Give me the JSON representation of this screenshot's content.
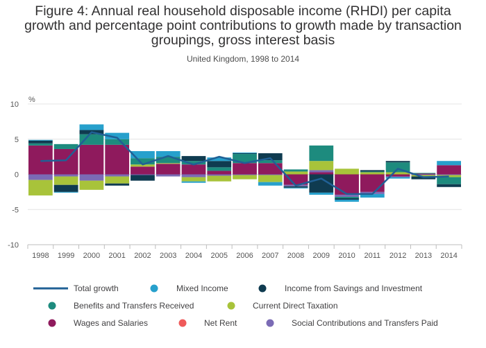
{
  "title_line1": "Figure 4: Annual real household disposable income (RHDI) per capita",
  "title_line2": "growth and percentage point contributions to growth made by transaction",
  "title_line3": "groupings, gross interest basis",
  "subtitle": "United Kingdom, 1998 to 2014",
  "chart_data": {
    "type": "bar",
    "stacked": true,
    "unit_label": "%",
    "ylim": [
      -10,
      10
    ],
    "yticks": [
      -10,
      -5,
      0,
      5,
      10
    ],
    "grid": true,
    "legend_position": "bottom",
    "categories": [
      "1998",
      "1999",
      "2000",
      "2001",
      "2002",
      "2003",
      "2004",
      "2005",
      "2006",
      "2007",
      "2008",
      "2009",
      "2010",
      "2011",
      "2012",
      "2013",
      "2014"
    ],
    "series": [
      {
        "name": "Wages and Salaries",
        "color": "#8f1a5d",
        "values": [
          4.1,
          3.6,
          4.2,
          4.2,
          1.1,
          1.5,
          1.4,
          0.5,
          1.6,
          1.6,
          -1.5,
          0.3,
          -2.9,
          -2.5,
          -0.3,
          0.1,
          1.3
        ]
      },
      {
        "name": "Social Contributions and Transfers Paid",
        "color": "#7b6bb5",
        "values": [
          -0.8,
          -0.3,
          -0.9,
          -0.3,
          -0.1,
          -0.3,
          -0.4,
          -0.2,
          -0.1,
          -0.1,
          -0.2,
          0.3,
          -0.3,
          -0.3,
          -0.1,
          -0.1,
          -0.1
        ]
      },
      {
        "name": "Net Rent",
        "color": "#ef5a5a",
        "values": [
          0.0,
          0.0,
          0.0,
          0.0,
          0.0,
          0.0,
          0.0,
          0.0,
          0.0,
          0.0,
          0.0,
          0.0,
          0.0,
          0.0,
          0.0,
          0.0,
          0.0
        ]
      },
      {
        "name": "Current Direct Taxation",
        "color": "#a8c33a",
        "values": [
          -2.2,
          -1.2,
          -1.3,
          -1.0,
          0.3,
          0.1,
          -0.6,
          -0.8,
          -0.6,
          -1.0,
          0.4,
          1.3,
          0.8,
          0.3,
          0.3,
          -0.2,
          -0.3
        ]
      },
      {
        "name": "Benefits and Transfers Received",
        "color": "#1d8b7e",
        "values": [
          0.3,
          0.7,
          1.5,
          0.8,
          0.9,
          0.9,
          0.5,
          0.5,
          1.3,
          0.4,
          0.3,
          2.2,
          -0.2,
          0.1,
          1.4,
          0.1,
          -1.0
        ]
      },
      {
        "name": "Income from Savings and Investment",
        "color": "#0f3b50",
        "values": [
          0.4,
          -1.0,
          0.6,
          -0.3,
          -0.8,
          0.0,
          0.7,
          0.9,
          0.1,
          1.0,
          -0.2,
          -2.6,
          -0.2,
          0.2,
          0.2,
          -0.4,
          -0.4
        ]
      },
      {
        "name": "Mixed Income",
        "color": "#27a0cc",
        "values": [
          0.1,
          -0.1,
          0.8,
          0.9,
          1.0,
          0.8,
          -0.2,
          0.5,
          0.1,
          -0.5,
          -0.1,
          -0.3,
          -0.3,
          -0.5,
          -0.2,
          0.0,
          0.6
        ]
      }
    ],
    "line": {
      "name": "Total growth",
      "color": "#206095",
      "values": [
        1.9,
        2.0,
        6.0,
        5.2,
        1.4,
        2.6,
        1.4,
        2.5,
        1.6,
        2.3,
        -1.6,
        -0.6,
        -2.8,
        -2.8,
        0.8,
        -0.4,
        -0.3
      ]
    },
    "legend": [
      {
        "name": "Total growth",
        "kind": "line",
        "color": "#206095"
      },
      {
        "name": "Mixed Income",
        "kind": "dot",
        "color": "#27a0cc"
      },
      {
        "name": "Income from Savings and Investment",
        "kind": "dot",
        "color": "#0f3b50"
      },
      {
        "name": "Benefits and Transfers Received",
        "kind": "dot",
        "color": "#1d8b7e"
      },
      {
        "name": "Current Direct Taxation",
        "kind": "dot",
        "color": "#a8c33a"
      },
      {
        "name": "Wages and Salaries",
        "kind": "dot",
        "color": "#8f1a5d"
      },
      {
        "name": "Net Rent",
        "kind": "dot",
        "color": "#ef5a5a"
      },
      {
        "name": "Social Contributions and Transfers Paid",
        "kind": "dot",
        "color": "#7b6bb5"
      }
    ]
  }
}
